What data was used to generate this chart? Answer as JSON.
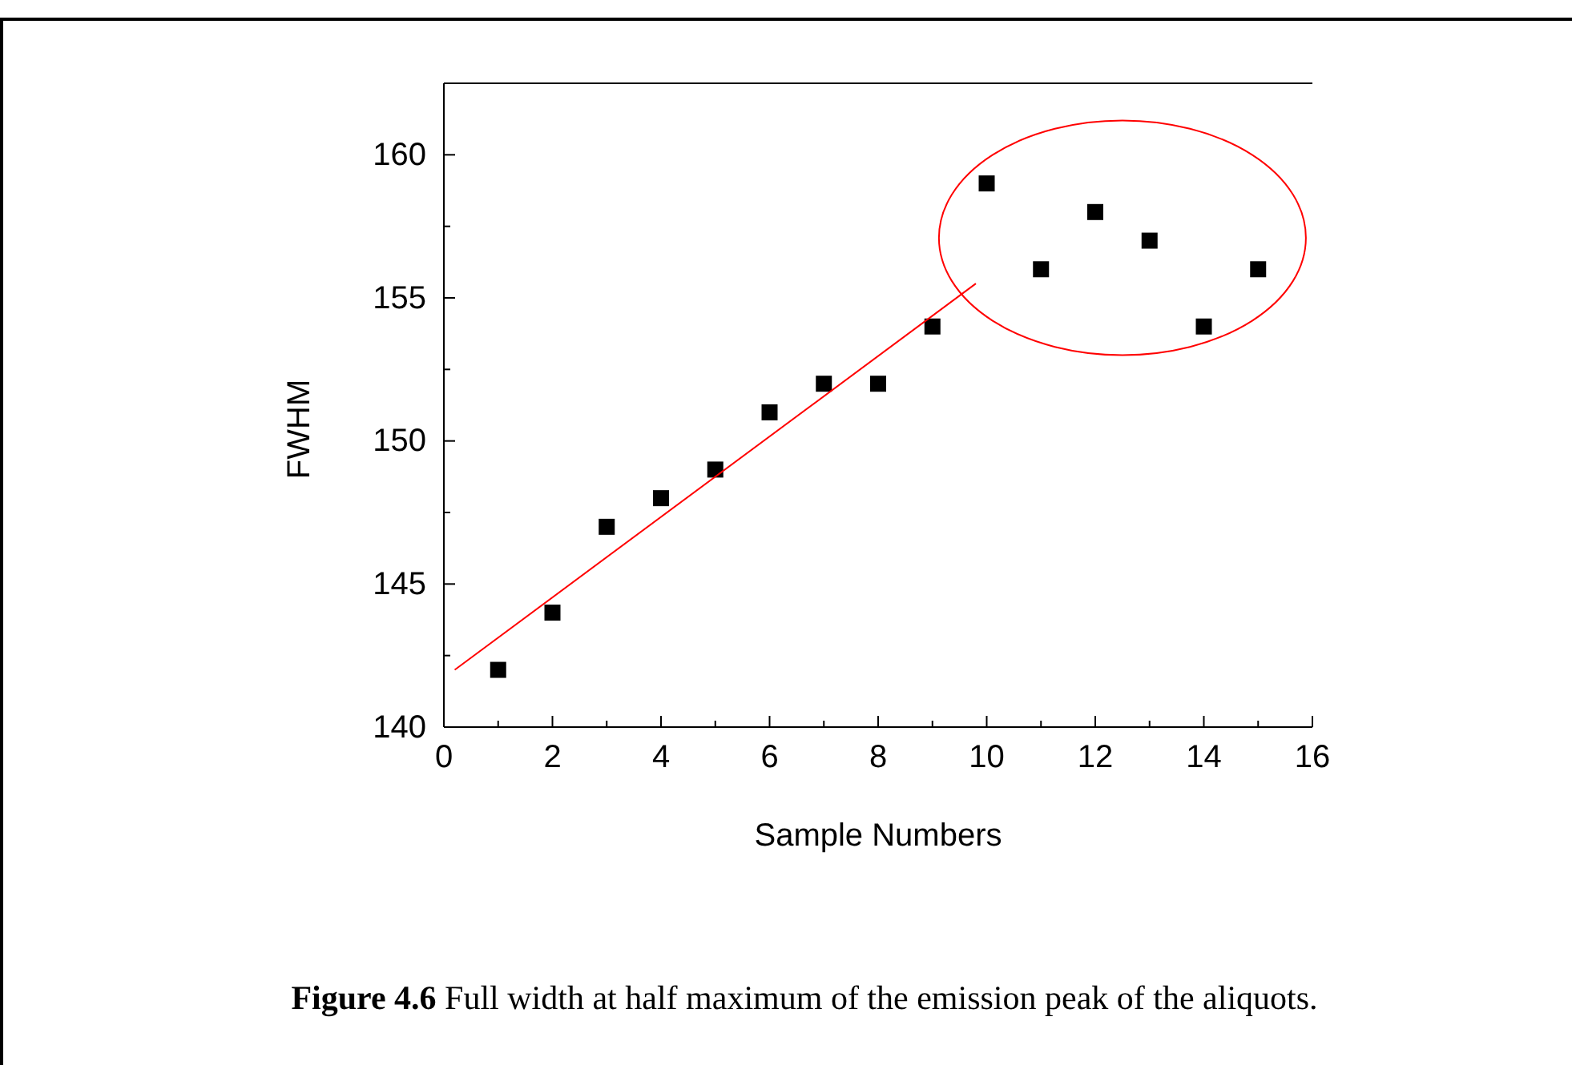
{
  "chart_data": {
    "type": "scatter",
    "xlabel": "Sample Numbers",
    "ylabel": "FWHM",
    "marker": "square",
    "grid": false,
    "xlim": [
      0,
      16
    ],
    "xticks": [
      0,
      {
        "value": 1,
        "label": null
      },
      2,
      {
        "value": 3,
        "label": null
      },
      4,
      {
        "value": 5,
        "label": null
      },
      6,
      {
        "value": 7,
        "label": null
      },
      8,
      {
        "value": 9,
        "label": null
      },
      10,
      {
        "value": 11,
        "label": null
      },
      12,
      {
        "value": 13,
        "label": null
      },
      14,
      {
        "value": 15,
        "label": null
      },
      16
    ],
    "ylim": [
      140,
      162.5
    ],
    "yticks": [
      140,
      {
        "value": 142.5,
        "label": null
      },
      145,
      {
        "value": 147.5,
        "label": null
      },
      150,
      {
        "value": 152.5,
        "label": null
      },
      155,
      {
        "value": 157.5,
        "label": null
      },
      160,
      {
        "value": 162.5,
        "label": null
      }
    ],
    "series": [
      {
        "color": "#000000",
        "x": [
          1,
          2,
          3,
          4,
          5,
          6,
          7,
          8,
          9,
          10,
          11,
          12,
          13,
          14,
          15
        ],
        "values": [
          142,
          144,
          147,
          148,
          149,
          151,
          152,
          152,
          154,
          159,
          156,
          158,
          157,
          154,
          156
        ]
      },
      {
        "type": "line",
        "marker": "none",
        "color": "#ff0000",
        "x": [
          0.2,
          9.8
        ],
        "values": [
          142,
          155.5
        ]
      }
    ],
    "annotations": [
      "Figure 4.6 Full width at half maximum of the emission peak of the aliquots."
    ]
  }
}
